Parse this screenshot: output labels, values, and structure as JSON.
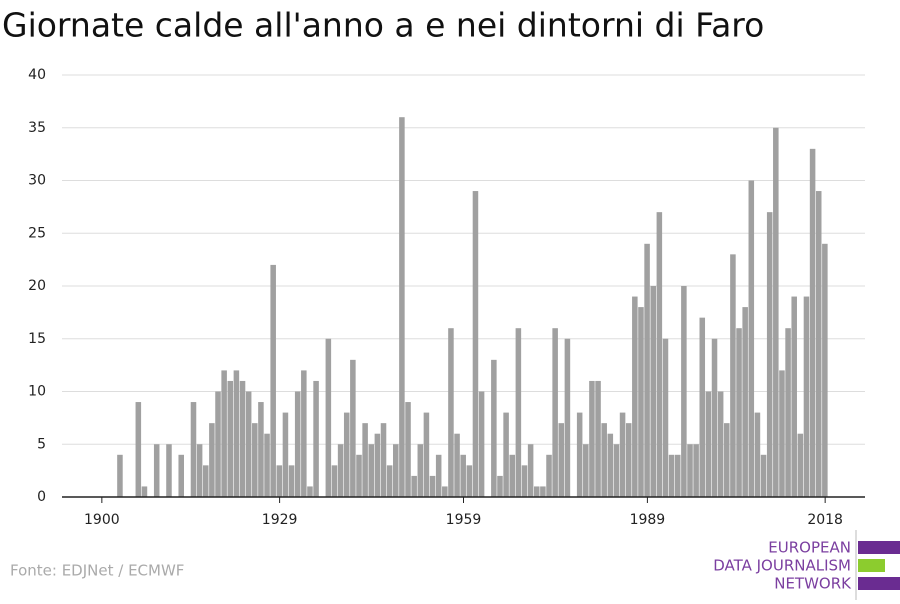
{
  "chart_data": {
    "type": "bar",
    "title": "Giornate calde all'anno a e nei dintorni di Faro",
    "source": "Fonte: EDJNet / ECMWF",
    "color": "#a0a0a0",
    "grid": true,
    "x": [
      1900,
      1901,
      1902,
      1903,
      1904,
      1905,
      1906,
      1907,
      1908,
      1909,
      1910,
      1911,
      1912,
      1913,
      1914,
      1915,
      1916,
      1917,
      1918,
      1919,
      1920,
      1921,
      1922,
      1923,
      1924,
      1925,
      1926,
      1927,
      1928,
      1929,
      1930,
      1931,
      1932,
      1933,
      1934,
      1935,
      1936,
      1937,
      1938,
      1939,
      1940,
      1941,
      1942,
      1943,
      1944,
      1945,
      1946,
      1947,
      1948,
      1949,
      1950,
      1951,
      1952,
      1953,
      1954,
      1955,
      1956,
      1957,
      1958,
      1959,
      1960,
      1961,
      1962,
      1963,
      1964,
      1965,
      1966,
      1967,
      1968,
      1969,
      1970,
      1971,
      1972,
      1973,
      1974,
      1975,
      1976,
      1977,
      1978,
      1979,
      1980,
      1981,
      1982,
      1983,
      1984,
      1985,
      1986,
      1987,
      1988,
      1989,
      1990,
      1991,
      1992,
      1993,
      1994,
      1995,
      1996,
      1997,
      1998,
      1999,
      2000,
      2001,
      2002,
      2003,
      2004,
      2005,
      2006,
      2007,
      2008,
      2009,
      2010,
      2011,
      2012,
      2013,
      2014,
      2015,
      2016,
      2017,
      2018
    ],
    "values": [
      0,
      0,
      0,
      4,
      0,
      0,
      9,
      1,
      0,
      5,
      0,
      5,
      0,
      4,
      0,
      9,
      5,
      3,
      7,
      10,
      12,
      11,
      12,
      11,
      10,
      7,
      9,
      6,
      22,
      3,
      8,
      3,
      10,
      12,
      1,
      11,
      0,
      15,
      3,
      5,
      8,
      13,
      4,
      7,
      5,
      6,
      7,
      3,
      5,
      36,
      9,
      2,
      5,
      8,
      2,
      4,
      1,
      16,
      6,
      4,
      3,
      29,
      10,
      0,
      13,
      2,
      8,
      4,
      16,
      3,
      5,
      1,
      1,
      4,
      16,
      7,
      15,
      0,
      8,
      5,
      11,
      11,
      7,
      6,
      5,
      8,
      7,
      19,
      18,
      24,
      20,
      27,
      15,
      4,
      4,
      20,
      5,
      5,
      17,
      10,
      15,
      10,
      7,
      23,
      16,
      18,
      30,
      8,
      4,
      27,
      35,
      12,
      16,
      19,
      6,
      19,
      33,
      29,
      24
    ],
    "xlim": [
      1893.5,
      2024.5
    ],
    "xticks": [
      1900,
      1929,
      1959,
      1989,
      2018
    ],
    "ylim": [
      0,
      40
    ],
    "yticks": [
      0,
      5,
      10,
      15,
      20,
      25,
      30,
      35,
      40
    ]
  },
  "logo": {
    "lines": [
      "EUROPEAN",
      "DATA JOURNALISM",
      "NETWORK"
    ]
  }
}
